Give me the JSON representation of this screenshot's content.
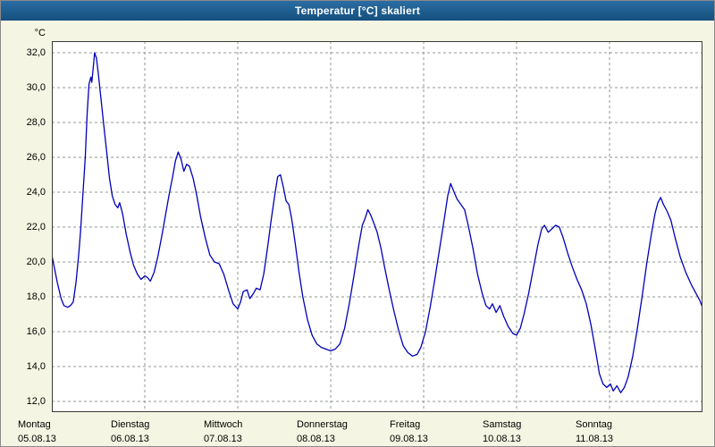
{
  "window": {
    "title": "Temperatur [°C] skaliert"
  },
  "colors": {
    "titlebar": "#16568c",
    "background": "#f5f5e3",
    "plot_background": "#ffffff",
    "grid": "#8f9a8f",
    "line": "#0000bb"
  },
  "chart_data": {
    "type": "line",
    "title": "Temperatur [°C] skaliert",
    "ylabel_unit": "°C",
    "ylim": [
      12,
      32
    ],
    "y_tick_step": 2,
    "y_tick_labels": [
      "32,0",
      "30,0",
      "28,0",
      "26,0",
      "24,0",
      "22,0",
      "20,0",
      "18,0",
      "16,0",
      "14,0",
      "12,0"
    ],
    "x_days": [
      {
        "name": "Montag",
        "date": "05.08.13"
      },
      {
        "name": "Dienstag",
        "date": "06.08.13"
      },
      {
        "name": "Mittwoch",
        "date": "07.08.13"
      },
      {
        "name": "Donnerstag",
        "date": "08.08.13"
      },
      {
        "name": "Freitag",
        "date": "09.08.13"
      },
      {
        "name": "Samstag",
        "date": "10.08.13"
      },
      {
        "name": "Sonntag",
        "date": "11.08.13"
      }
    ],
    "grid": true,
    "legend": false,
    "series": [
      {
        "name": "Temperatur [°C]",
        "points": [
          [
            0,
            20.4
          ],
          [
            0.03,
            19.6
          ],
          [
            0.06,
            18.8
          ],
          [
            0.1,
            17.9
          ],
          [
            0.13,
            17.5
          ],
          [
            0.17,
            17.4
          ],
          [
            0.2,
            17.5
          ],
          [
            0.23,
            17.7
          ],
          [
            0.26,
            18.8
          ],
          [
            0.29,
            20.5
          ],
          [
            0.31,
            21.8
          ],
          [
            0.33,
            23.5
          ],
          [
            0.36,
            26
          ],
          [
            0.38,
            28.5
          ],
          [
            0.4,
            30.2
          ],
          [
            0.42,
            30.6
          ],
          [
            0.43,
            30.3
          ],
          [
            0.45,
            31.4
          ],
          [
            0.46,
            32
          ],
          [
            0.48,
            31.7
          ],
          [
            0.5,
            30.8
          ],
          [
            0.53,
            29.3
          ],
          [
            0.56,
            27.8
          ],
          [
            0.59,
            26.3
          ],
          [
            0.62,
            24.8
          ],
          [
            0.65,
            23.8
          ],
          [
            0.68,
            23.3
          ],
          [
            0.71,
            23.1
          ],
          [
            0.73,
            23.4
          ],
          [
            0.76,
            22.8
          ],
          [
            0.8,
            21.6
          ],
          [
            0.84,
            20.6
          ],
          [
            0.88,
            19.8
          ],
          [
            0.92,
            19.3
          ],
          [
            0.96,
            19
          ],
          [
            1,
            19.2
          ],
          [
            1.03,
            19.1
          ],
          [
            1.06,
            18.9
          ],
          [
            1.1,
            19.4
          ],
          [
            1.14,
            20.3
          ],
          [
            1.18,
            21.4
          ],
          [
            1.22,
            22.6
          ],
          [
            1.26,
            23.8
          ],
          [
            1.3,
            24.9
          ],
          [
            1.33,
            25.8
          ],
          [
            1.36,
            26.3
          ],
          [
            1.39,
            25.9
          ],
          [
            1.42,
            25.2
          ],
          [
            1.45,
            25.6
          ],
          [
            1.48,
            25.5
          ],
          [
            1.52,
            24.8
          ],
          [
            1.56,
            23.8
          ],
          [
            1.6,
            22.6
          ],
          [
            1.65,
            21.4
          ],
          [
            1.7,
            20.4
          ],
          [
            1.75,
            20
          ],
          [
            1.8,
            19.9
          ],
          [
            1.85,
            19.3
          ],
          [
            1.9,
            18.4
          ],
          [
            1.95,
            17.6
          ],
          [
            2,
            17.3
          ],
          [
            2.03,
            17.7
          ],
          [
            2.06,
            18.3
          ],
          [
            2.1,
            18.4
          ],
          [
            2.13,
            17.9
          ],
          [
            2.17,
            18.2
          ],
          [
            2.2,
            18.5
          ],
          [
            2.24,
            18.4
          ],
          [
            2.28,
            19.3
          ],
          [
            2.32,
            20.8
          ],
          [
            2.36,
            22.4
          ],
          [
            2.4,
            23.9
          ],
          [
            2.43,
            24.9
          ],
          [
            2.46,
            25
          ],
          [
            2.49,
            24.3
          ],
          [
            2.52,
            23.5
          ],
          [
            2.55,
            23.3
          ],
          [
            2.58,
            22.5
          ],
          [
            2.62,
            21
          ],
          [
            2.66,
            19.4
          ],
          [
            2.7,
            18
          ],
          [
            2.75,
            16.7
          ],
          [
            2.8,
            15.8
          ],
          [
            2.85,
            15.3
          ],
          [
            2.9,
            15.1
          ],
          [
            2.95,
            15
          ],
          [
            3,
            14.9
          ],
          [
            3.05,
            15
          ],
          [
            3.1,
            15.3
          ],
          [
            3.15,
            16.2
          ],
          [
            3.2,
            17.6
          ],
          [
            3.25,
            19.2
          ],
          [
            3.3,
            20.9
          ],
          [
            3.34,
            22.1
          ],
          [
            3.37,
            22.5
          ],
          [
            3.4,
            23
          ],
          [
            3.43,
            22.7
          ],
          [
            3.46,
            22.3
          ],
          [
            3.5,
            21.7
          ],
          [
            3.54,
            20.8
          ],
          [
            3.58,
            19.7
          ],
          [
            3.63,
            18.4
          ],
          [
            3.68,
            17.2
          ],
          [
            3.73,
            16.1
          ],
          [
            3.78,
            15.2
          ],
          [
            3.83,
            14.8
          ],
          [
            3.88,
            14.6
          ],
          [
            3.93,
            14.7
          ],
          [
            3.97,
            15.1
          ],
          [
            4.02,
            16
          ],
          [
            4.07,
            17.4
          ],
          [
            4.12,
            19
          ],
          [
            4.17,
            20.7
          ],
          [
            4.22,
            22.4
          ],
          [
            4.26,
            23.8
          ],
          [
            4.29,
            24.5
          ],
          [
            4.32,
            24.1
          ],
          [
            4.36,
            23.6
          ],
          [
            4.4,
            23.3
          ],
          [
            4.44,
            23
          ],
          [
            4.48,
            22.1
          ],
          [
            4.53,
            20.8
          ],
          [
            4.58,
            19.3
          ],
          [
            4.63,
            18.2
          ],
          [
            4.67,
            17.5
          ],
          [
            4.71,
            17.3
          ],
          [
            4.74,
            17.6
          ],
          [
            4.78,
            17.1
          ],
          [
            4.82,
            17.5
          ],
          [
            4.86,
            16.9
          ],
          [
            4.91,
            16.3
          ],
          [
            4.96,
            15.9
          ],
          [
            5,
            15.8
          ],
          [
            5.04,
            16.2
          ],
          [
            5.08,
            17
          ],
          [
            5.13,
            18.2
          ],
          [
            5.18,
            19.6
          ],
          [
            5.23,
            21
          ],
          [
            5.27,
            21.9
          ],
          [
            5.3,
            22.1
          ],
          [
            5.34,
            21.7
          ],
          [
            5.38,
            21.9
          ],
          [
            5.42,
            22.1
          ],
          [
            5.46,
            22
          ],
          [
            5.5,
            21.4
          ],
          [
            5.55,
            20.5
          ],
          [
            5.6,
            19.7
          ],
          [
            5.65,
            19
          ],
          [
            5.7,
            18.4
          ],
          [
            5.75,
            17.6
          ],
          [
            5.8,
            16.4
          ],
          [
            5.85,
            14.9
          ],
          [
            5.89,
            13.6
          ],
          [
            5.93,
            13
          ],
          [
            5.97,
            12.8
          ],
          [
            6.01,
            13
          ],
          [
            6.04,
            12.6
          ],
          [
            6.08,
            12.9
          ],
          [
            6.12,
            12.5
          ],
          [
            6.16,
            12.8
          ],
          [
            6.2,
            13.4
          ],
          [
            6.25,
            14.6
          ],
          [
            6.3,
            16.2
          ],
          [
            6.35,
            18
          ],
          [
            6.4,
            19.9
          ],
          [
            6.45,
            21.6
          ],
          [
            6.49,
            22.8
          ],
          [
            6.52,
            23.4
          ],
          [
            6.55,
            23.7
          ],
          [
            6.58,
            23.3
          ],
          [
            6.62,
            22.9
          ],
          [
            6.66,
            22.4
          ],
          [
            6.71,
            21.3
          ],
          [
            6.76,
            20.3
          ],
          [
            6.82,
            19.4
          ],
          [
            6.88,
            18.7
          ],
          [
            6.93,
            18.2
          ],
          [
            6.97,
            17.8
          ],
          [
            7,
            17.4
          ]
        ]
      }
    ]
  }
}
